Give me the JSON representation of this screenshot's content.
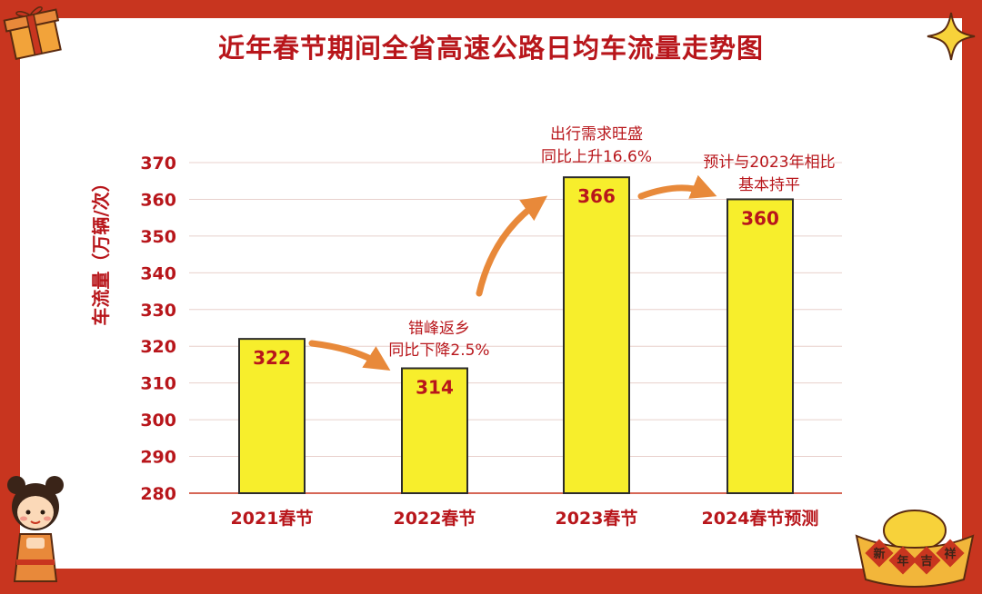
{
  "chart_data": {
    "type": "bar",
    "title": "近年春节期间全省高速公路日均车流量走势图",
    "ylabel": "车流量（万辆/次）",
    "xlabel": "",
    "categories": [
      "2021春节",
      "2022春节",
      "2023春节",
      "2024春节预测"
    ],
    "values": [
      322,
      314,
      366,
      360
    ],
    "value_labels": [
      "322",
      "314",
      "366",
      "360"
    ],
    "ylim": [
      280,
      370
    ],
    "yticks": [
      280,
      290,
      300,
      310,
      320,
      330,
      340,
      350,
      360,
      370
    ],
    "grid": true,
    "legend": "none",
    "annotations": [
      {
        "lines": [
          "错峰返乡",
          "同比下降2.5%"
        ]
      },
      {
        "lines": [
          "出行需求旺盛",
          "同比上升16.6%"
        ]
      },
      {
        "lines": [
          "预计与2023年相比",
          "基本持平"
        ]
      }
    ]
  },
  "decorations": {
    "badge_text": [
      "新",
      "年",
      "吉",
      "祥"
    ]
  },
  "colors": {
    "border": "#c8351f",
    "title": "#b8161b",
    "bar_fill": "#f7ee2c",
    "bar_stroke": "#2b2b2b",
    "label": "#b8161b",
    "axis_text": "#b8161b",
    "arrow": "#e8893a",
    "grid": "#e8d0cc"
  }
}
